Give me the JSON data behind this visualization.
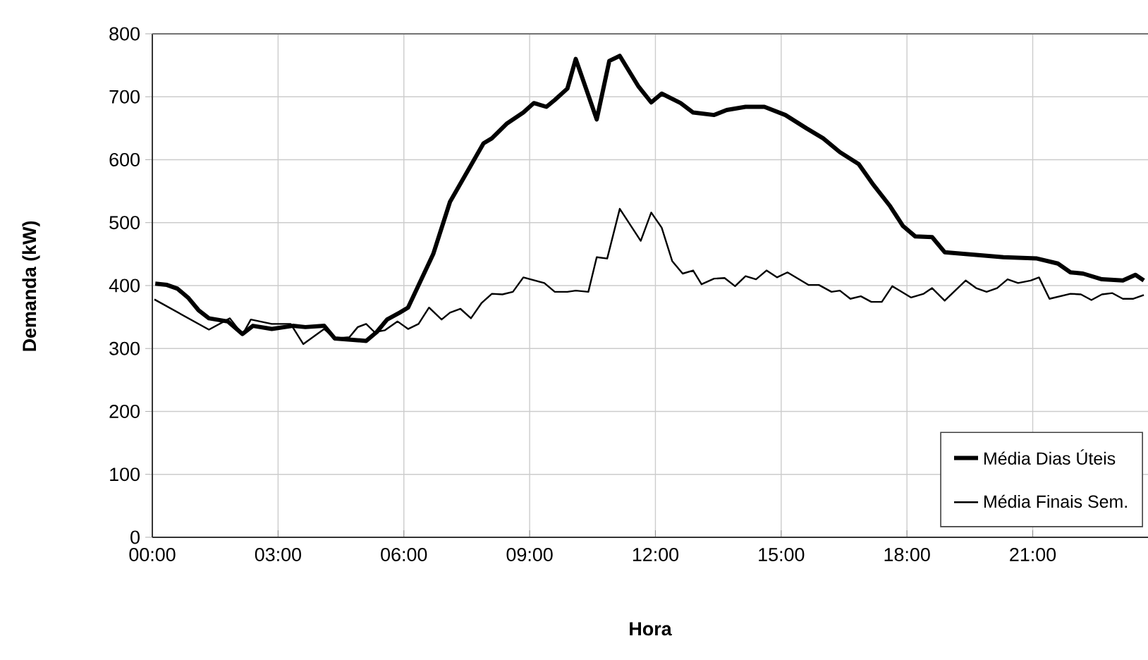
{
  "chart_data": {
    "type": "line",
    "xlabel": "Hora",
    "ylabel": "Demanda (kW)",
    "xlim": [
      0,
      23.75
    ],
    "ylim": [
      0,
      800
    ],
    "xticks": [
      {
        "value": 0,
        "label": "00:00"
      },
      {
        "value": 3,
        "label": "03:00"
      },
      {
        "value": 6,
        "label": "06:00"
      },
      {
        "value": 9,
        "label": "09:00"
      },
      {
        "value": 12,
        "label": "12:00"
      },
      {
        "value": 15,
        "label": "15:00"
      },
      {
        "value": 18,
        "label": "18:00"
      },
      {
        "value": 21,
        "label": "21:00"
      }
    ],
    "yticks": [
      0,
      100,
      200,
      300,
      400,
      500,
      600,
      700,
      800
    ],
    "grid": true,
    "legend": "bottom right",
    "marker": "none",
    "line_style": "solid",
    "series": [
      {
        "name": "Média Dias Úteis",
        "color": "#000000",
        "x": [
          0.07,
          0.35,
          0.6,
          0.85,
          1.1,
          1.35,
          1.8,
          2.15,
          2.4,
          2.85,
          3.35,
          3.65,
          4.1,
          4.35,
          5.1,
          5.35,
          5.6,
          5.9,
          6.1,
          6.7,
          7.1,
          7.9,
          8.1,
          8.45,
          8.85,
          9.1,
          9.4,
          9.6,
          9.9,
          10.1,
          10.6,
          10.9,
          11.15,
          11.6,
          11.9,
          12.15,
          12.6,
          12.9,
          13.4,
          13.7,
          14.15,
          14.6,
          15.1,
          15.6,
          16.0,
          16.4,
          16.85,
          17.2,
          17.6,
          17.9,
          18.2,
          18.6,
          18.9,
          19.6,
          20.3,
          21.1,
          21.6,
          21.9,
          22.2,
          22.65,
          23.15,
          23.45,
          23.65
        ],
        "values": [
          403,
          401,
          395,
          381,
          361,
          348,
          343,
          323,
          336,
          331,
          336,
          334,
          336,
          316,
          312,
          326,
          346,
          357,
          365,
          450,
          533,
          626,
          634,
          657,
          675,
          690,
          684,
          695,
          713,
          760,
          664,
          757,
          765,
          716,
          691,
          705,
          690,
          675,
          671,
          679,
          684,
          684,
          671,
          650,
          634,
          612,
          593,
          560,
          526,
          495,
          478,
          477,
          453,
          449,
          445,
          443,
          435,
          421,
          419,
          410,
          408,
          417,
          408
        ]
      },
      {
        "name": "Média Finais Sem.",
        "color": "#000000",
        "x": [
          0.05,
          1.35,
          1.85,
          2.15,
          2.35,
          2.85,
          3.3,
          3.6,
          4.1,
          4.35,
          4.7,
          4.9,
          5.1,
          5.3,
          5.55,
          5.85,
          6.1,
          6.35,
          6.6,
          6.9,
          7.1,
          7.35,
          7.6,
          7.85,
          8.1,
          8.35,
          8.6,
          8.85,
          9.35,
          9.6,
          9.9,
          10.1,
          10.4,
          10.6,
          10.85,
          11.15,
          11.65,
          11.9,
          12.15,
          12.4,
          12.65,
          12.9,
          13.1,
          13.4,
          13.65,
          13.9,
          14.15,
          14.4,
          14.65,
          14.9,
          15.15,
          15.65,
          15.9,
          16.2,
          16.4,
          16.65,
          16.9,
          17.15,
          17.4,
          17.65,
          18.1,
          18.4,
          18.6,
          18.9,
          19.4,
          19.65,
          19.9,
          20.15,
          20.4,
          20.65,
          20.95,
          21.15,
          21.4,
          21.9,
          22.15,
          22.4,
          22.65,
          22.9,
          23.15,
          23.4,
          23.65
        ],
        "values": [
          378,
          330,
          348,
          322,
          346,
          339,
          339,
          307,
          331,
          316,
          318,
          334,
          339,
          326,
          329,
          343,
          331,
          339,
          365,
          346,
          357,
          363,
          348,
          372,
          387,
          386,
          390,
          413,
          404,
          390,
          390,
          392,
          390,
          445,
          443,
          522,
          471,
          516,
          492,
          439,
          419,
          424,
          402,
          411,
          412,
          399,
          415,
          410,
          424,
          413,
          421,
          401,
          401,
          390,
          392,
          379,
          383,
          374,
          374,
          399,
          381,
          387,
          396,
          376,
          408,
          396,
          390,
          396,
          410,
          404,
          408,
          413,
          379,
          387,
          386,
          377,
          386,
          388,
          379,
          379,
          385
        ]
      }
    ]
  }
}
